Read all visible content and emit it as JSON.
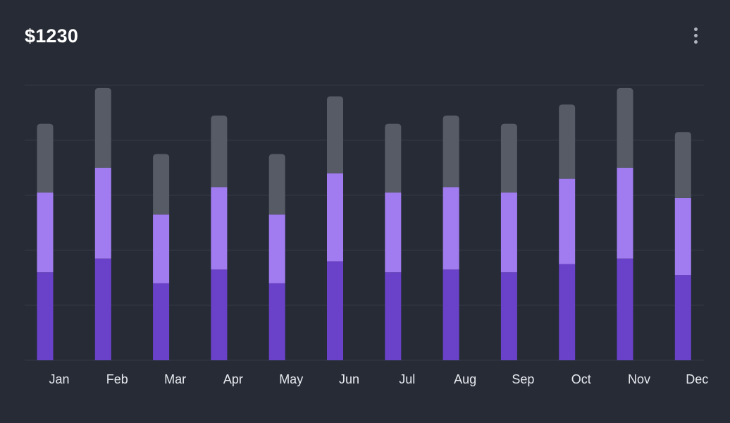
{
  "header": {
    "title": "$1230",
    "menu_icon": "more-vertical-icon"
  },
  "colors": {
    "background": "#262b36",
    "grid": "#343a47",
    "series_bottom": "#6a42c9",
    "series_middle": "#a17cf0",
    "series_top": "#565b66"
  },
  "chart_data": {
    "type": "bar",
    "stacked": true,
    "categories": [
      "Jan",
      "Feb",
      "Mar",
      "Apr",
      "May",
      "Jun",
      "Jul",
      "Aug",
      "Sep",
      "Oct",
      "Nov",
      "Dec"
    ],
    "series": [
      {
        "values": [
          32,
          37,
          28,
          33,
          28,
          36,
          32,
          33,
          32,
          35,
          37,
          31
        ]
      },
      {
        "values": [
          29,
          33,
          25,
          30,
          25,
          32,
          29,
          30,
          29,
          31,
          33,
          28
        ]
      },
      {
        "values": [
          25,
          29,
          22,
          26,
          22,
          28,
          25,
          26,
          25,
          27,
          29,
          24
        ]
      }
    ],
    "ylim": [
      0,
      100
    ],
    "grid": true,
    "legend": false,
    "xlabel": "",
    "ylabel": ""
  }
}
